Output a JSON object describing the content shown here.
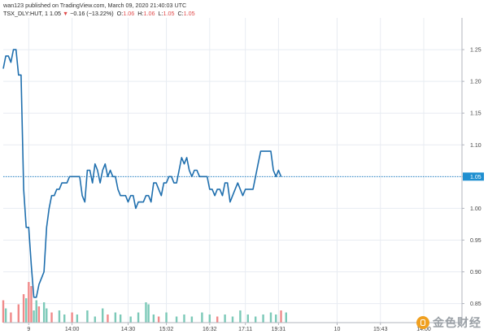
{
  "header": {
    "publisher": "wan123 published on TradingView.com, March 09, 2020 21:40:03 UTC"
  },
  "legend": {
    "symbol": "TSX_DLY:HUT, 1",
    "last": "1.05",
    "arrow": "▼",
    "change": "−0.16 (−13.22%)",
    "o_label": "O:",
    "o_value": "1.06",
    "h_label": "H:",
    "h_value": "1.06",
    "l_label": "L:",
    "l_value": "1.05",
    "c_label": "C:",
    "c_value": "1.05"
  },
  "watermark": {
    "text": "金色财经"
  },
  "colors": {
    "line": "#1f6fae",
    "price_line": "#2a88c8",
    "badge": "#1f8fd0",
    "vol_up": "#7cc9b8",
    "vol_down": "#f08a8a",
    "grid": "#e8ecf2"
  },
  "chart_data": {
    "type": "line",
    "ylim": [
      0.82,
      1.3
    ],
    "y_ticks": [
      0.85,
      0.9,
      0.95,
      1.0,
      1.05,
      1.1,
      1.15,
      1.2,
      1.25
    ],
    "y_tick_labels": [
      "0.85",
      "0.90",
      "0.95",
      "1.00",
      "1.05",
      "1.10",
      "1.15",
      "1.20",
      "1.25"
    ],
    "last_price": 1.05,
    "last_price_label": "1.05",
    "x_ticks": [
      {
        "label": "9",
        "i": 10
      },
      {
        "label": "14:00",
        "i": 27
      },
      {
        "label": "14:30",
        "i": 49
      },
      {
        "label": "15:02",
        "i": 64
      },
      {
        "label": "16:32",
        "i": 81
      },
      {
        "label": "17:11",
        "i": 95
      },
      {
        "label": "19:31",
        "i": 108
      },
      {
        "label": "10",
        "i": 131
      },
      {
        "label": "15:43",
        "i": 148
      },
      {
        "label": "14:00",
        "i": 165
      }
    ],
    "x_count": 180,
    "series": [
      {
        "values": [
          1.22,
          1.24,
          1.24,
          1.23,
          1.25,
          1.25,
          1.21,
          1.21,
          1.03,
          0.97,
          0.97,
          0.91,
          0.86,
          0.86,
          0.88,
          0.89,
          0.9,
          0.97,
          1.0,
          1.02,
          1.02,
          1.03,
          1.03,
          1.04,
          1.04,
          1.04,
          1.05,
          1.05,
          1.05,
          1.05,
          1.05,
          1.02,
          1.01,
          1.06,
          1.06,
          1.04,
          1.07,
          1.06,
          1.04,
          1.06,
          1.07,
          1.05,
          1.06,
          1.05,
          1.05,
          1.03,
          1.02,
          1.02,
          1.02,
          1.01,
          1.02,
          1.02,
          1.0,
          1.01,
          1.01,
          1.01,
          1.02,
          1.02,
          1.01,
          1.04,
          1.04,
          1.03,
          1.02,
          1.04,
          1.04,
          1.05,
          1.05,
          1.04,
          1.04,
          1.06,
          1.08,
          1.07,
          1.08,
          1.06,
          1.05,
          1.06,
          1.06,
          1.05,
          1.05,
          1.05,
          1.05,
          1.03,
          1.03,
          1.02,
          1.03,
          1.03,
          1.02,
          1.04,
          1.04,
          1.01,
          1.02,
          1.03,
          1.04,
          1.03,
          1.02,
          1.03,
          1.03,
          1.03,
          1.03,
          1.05,
          1.07,
          1.09,
          1.09,
          1.09,
          1.09,
          1.09,
          1.06,
          1.05,
          1.06,
          1.05
        ]
      }
    ],
    "volume": [
      {
        "i": 0,
        "v": 0.55,
        "up": 0
      },
      {
        "i": 1,
        "v": 0.35,
        "up": 1
      },
      {
        "i": 3,
        "v": 0.25,
        "up": 0
      },
      {
        "i": 6,
        "v": 0.45,
        "up": 0
      },
      {
        "i": 8,
        "v": 0.7,
        "up": 0
      },
      {
        "i": 9,
        "v": 0.6,
        "up": 1
      },
      {
        "i": 10,
        "v": 1.0,
        "up": 0
      },
      {
        "i": 11,
        "v": 0.9,
        "up": 0
      },
      {
        "i": 12,
        "v": 0.3,
        "up": 1
      },
      {
        "i": 13,
        "v": 0.55,
        "up": 1
      },
      {
        "i": 14,
        "v": 0.4,
        "up": 0
      },
      {
        "i": 16,
        "v": 0.5,
        "up": 1
      },
      {
        "i": 17,
        "v": 0.35,
        "up": 1
      },
      {
        "i": 19,
        "v": 0.25,
        "up": 0
      },
      {
        "i": 22,
        "v": 0.3,
        "up": 1
      },
      {
        "i": 24,
        "v": 0.2,
        "up": 1
      },
      {
        "i": 27,
        "v": 0.25,
        "up": 0
      },
      {
        "i": 29,
        "v": 0.2,
        "up": 1
      },
      {
        "i": 33,
        "v": 0.3,
        "up": 1
      },
      {
        "i": 36,
        "v": 0.15,
        "up": 1
      },
      {
        "i": 39,
        "v": 0.35,
        "up": 1
      },
      {
        "i": 41,
        "v": 0.2,
        "up": 0
      },
      {
        "i": 44,
        "v": 0.25,
        "up": 1
      },
      {
        "i": 46,
        "v": 0.2,
        "up": 1
      },
      {
        "i": 50,
        "v": 0.15,
        "up": 1
      },
      {
        "i": 53,
        "v": 0.25,
        "up": 1
      },
      {
        "i": 56,
        "v": 0.5,
        "up": 1
      },
      {
        "i": 57,
        "v": 0.45,
        "up": 1
      },
      {
        "i": 59,
        "v": 0.2,
        "up": 1
      },
      {
        "i": 61,
        "v": 0.15,
        "up": 0
      },
      {
        "i": 64,
        "v": 0.25,
        "up": 1
      },
      {
        "i": 68,
        "v": 0.15,
        "up": 1
      },
      {
        "i": 71,
        "v": 0.2,
        "up": 1
      },
      {
        "i": 74,
        "v": 0.15,
        "up": 1
      },
      {
        "i": 78,
        "v": 0.25,
        "up": 1
      },
      {
        "i": 81,
        "v": 0.2,
        "up": 1
      },
      {
        "i": 84,
        "v": 0.15,
        "up": 0
      },
      {
        "i": 87,
        "v": 0.2,
        "up": 1
      },
      {
        "i": 90,
        "v": 0.15,
        "up": 1
      },
      {
        "i": 93,
        "v": 0.3,
        "up": 1
      },
      {
        "i": 96,
        "v": 0.2,
        "up": 1
      },
      {
        "i": 99,
        "v": 0.15,
        "up": 1
      },
      {
        "i": 102,
        "v": 0.2,
        "up": 1
      },
      {
        "i": 105,
        "v": 0.25,
        "up": 1
      },
      {
        "i": 107,
        "v": 0.2,
        "up": 1
      },
      {
        "i": 109,
        "v": 0.3,
        "up": 0
      },
      {
        "i": 111,
        "v": 0.25,
        "up": 1
      }
    ]
  }
}
